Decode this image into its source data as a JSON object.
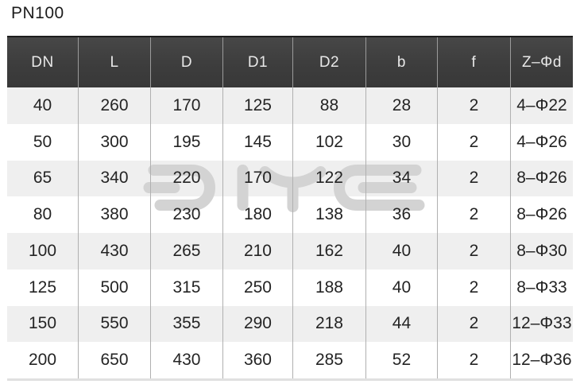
{
  "page": {
    "title": "PN100"
  },
  "table": {
    "columns": [
      "DN",
      "L",
      "D",
      "D1",
      "D2",
      "b",
      "f",
      "Z–Φd"
    ],
    "rows": [
      [
        "40",
        "260",
        "170",
        "125",
        "88",
        "28",
        "2",
        "4–Φ22"
      ],
      [
        "50",
        "300",
        "195",
        "145",
        "102",
        "30",
        "2",
        "4–Φ26"
      ],
      [
        "65",
        "340",
        "220",
        "170",
        "122",
        "34",
        "2",
        "8–Φ26"
      ],
      [
        "80",
        "380",
        "230",
        "180",
        "138",
        "36",
        "2",
        "8–Φ26"
      ],
      [
        "100",
        "430",
        "265",
        "210",
        "162",
        "40",
        "2",
        "8–Φ30"
      ],
      [
        "125",
        "500",
        "315",
        "250",
        "188",
        "40",
        "2",
        "8–Φ33"
      ],
      [
        "150",
        "550",
        "355",
        "290",
        "218",
        "44",
        "2",
        "12–Φ33"
      ],
      [
        "200",
        "650",
        "430",
        "360",
        "285",
        "52",
        "2",
        "12–Φ36"
      ]
    ]
  },
  "watermark": {
    "label": "DYE brand logo watermark",
    "color": "#d3d3d3"
  },
  "colors": {
    "header_bg": "#3d3d3d",
    "header_text": "#e8e8e8",
    "row_alt_bg": "#efefef",
    "row_bg": "#ffffff",
    "cell_text": "#242424",
    "separator": "#b0b0b0"
  }
}
